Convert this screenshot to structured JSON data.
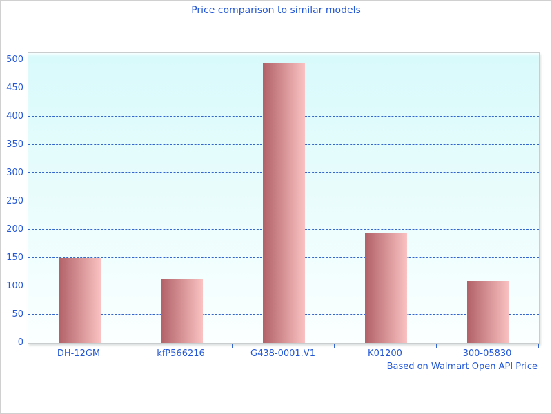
{
  "chart_data": {
    "type": "bar",
    "title": "Price comparison to similar models",
    "categories": [
      "DH-12GM",
      "kfP566216",
      "G438-0001.V1",
      "K01200",
      "300-05830"
    ],
    "values": [
      150,
      113,
      495,
      195,
      110
    ],
    "xlabel": "",
    "ylabel": "",
    "ylim": [
      0,
      500
    ],
    "ytick_step": 50,
    "yticks": [
      0,
      50,
      100,
      150,
      200,
      250,
      300,
      350,
      400,
      450,
      500
    ],
    "grid": "horizontal-dashed",
    "legend": "none",
    "footnote": "Based on Walmart Open API Price",
    "colors": {
      "title_text": "#2357d6",
      "axis_text": "#2357d6",
      "footnote_text": "#2357d6",
      "gridline": "#3366cc",
      "axis_tick": "#3366cc",
      "bar_gradient_left": "#b16168",
      "bar_gradient_right": "#fac2c2",
      "plot_bg_top": "#d8fafb",
      "plot_bg_bottom": "#fbffff",
      "plot_border": "#c9cdcd",
      "page_bg": "#ffffff",
      "page_border": "#d0d0d0"
    }
  }
}
